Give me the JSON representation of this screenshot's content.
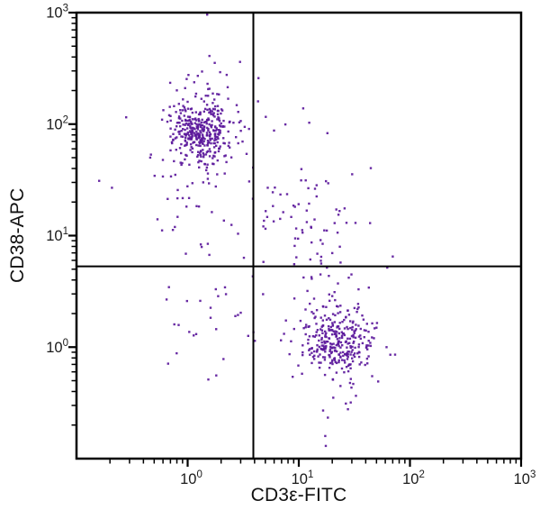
{
  "chart_data": {
    "type": "scatter",
    "title": "",
    "xlabel": "CD3ε-FITC",
    "ylabel": "CD38-APC",
    "xscale": "log",
    "yscale": "log",
    "xlim": [
      0.1,
      1000
    ],
    "ylim": [
      0.1,
      1000
    ],
    "x_major_ticks": [
      1,
      10,
      100,
      1000
    ],
    "y_major_ticks": [
      1,
      10,
      100,
      1000
    ],
    "minor_tick_multipliers": [
      2,
      3,
      4,
      5,
      6,
      7,
      8,
      9
    ],
    "grid": false,
    "legend": "none",
    "dot_color": "#5B189B",
    "axis_color": "#000000",
    "gate_color": "#000000",
    "quadrant_gates": {
      "x_value": 3.9,
      "y_value": 5.3
    },
    "seed": 7,
    "populations": [
      {
        "name": "CD38-positive CD3-negative core (upper-left cluster)",
        "n": 350,
        "mean_log10": [
          0.12,
          1.95
        ],
        "sd_log10": [
          0.13,
          0.15
        ]
      },
      {
        "name": "upper-left halo",
        "n": 45,
        "mean_log10": [
          0.11,
          1.8
        ],
        "sd_log10": [
          0.22,
          0.28
        ]
      },
      {
        "name": "upper-left low tail",
        "n": 26,
        "mean_log10": [
          0.1,
          1.15
        ],
        "sd_log10": [
          0.17,
          0.3
        ]
      },
      {
        "name": "upper-left high outliers",
        "n": 10,
        "mean_log10": [
          0.16,
          2.42
        ],
        "sd_log10": [
          0.18,
          0.13
        ]
      },
      {
        "name": "CD38/CD3 double-positive scatter (upper-right)",
        "n": 80,
        "mean_log10": [
          1.02,
          1.12
        ],
        "sd_log10": [
          0.26,
          0.3
        ]
      },
      {
        "name": "upper-right high outliers",
        "n": 8,
        "mean_log10": [
          0.95,
          2.08
        ],
        "sd_log10": [
          0.24,
          0.1
        ]
      },
      {
        "name": "double-negative scatter (lower-left)",
        "n": 24,
        "mean_log10": [
          0.1,
          0.26
        ],
        "sd_log10": [
          0.2,
          0.26
        ]
      },
      {
        "name": "CD3-positive CD38-negative core (lower-right cluster)",
        "n": 260,
        "mean_log10": [
          1.36,
          0.06
        ],
        "sd_log10": [
          0.15,
          0.14
        ]
      },
      {
        "name": "lower-right halo",
        "n": 85,
        "mean_log10": [
          1.32,
          0.05
        ],
        "sd_log10": [
          0.28,
          0.3
        ]
      }
    ],
    "extra_points": [
      [
        1.5,
        960
      ],
      [
        17.5,
        0.13
      ],
      [
        0.28,
        115
      ],
      [
        0.16,
        31
      ],
      [
        4.3,
        160
      ],
      [
        70,
        6.5
      ]
    ]
  }
}
